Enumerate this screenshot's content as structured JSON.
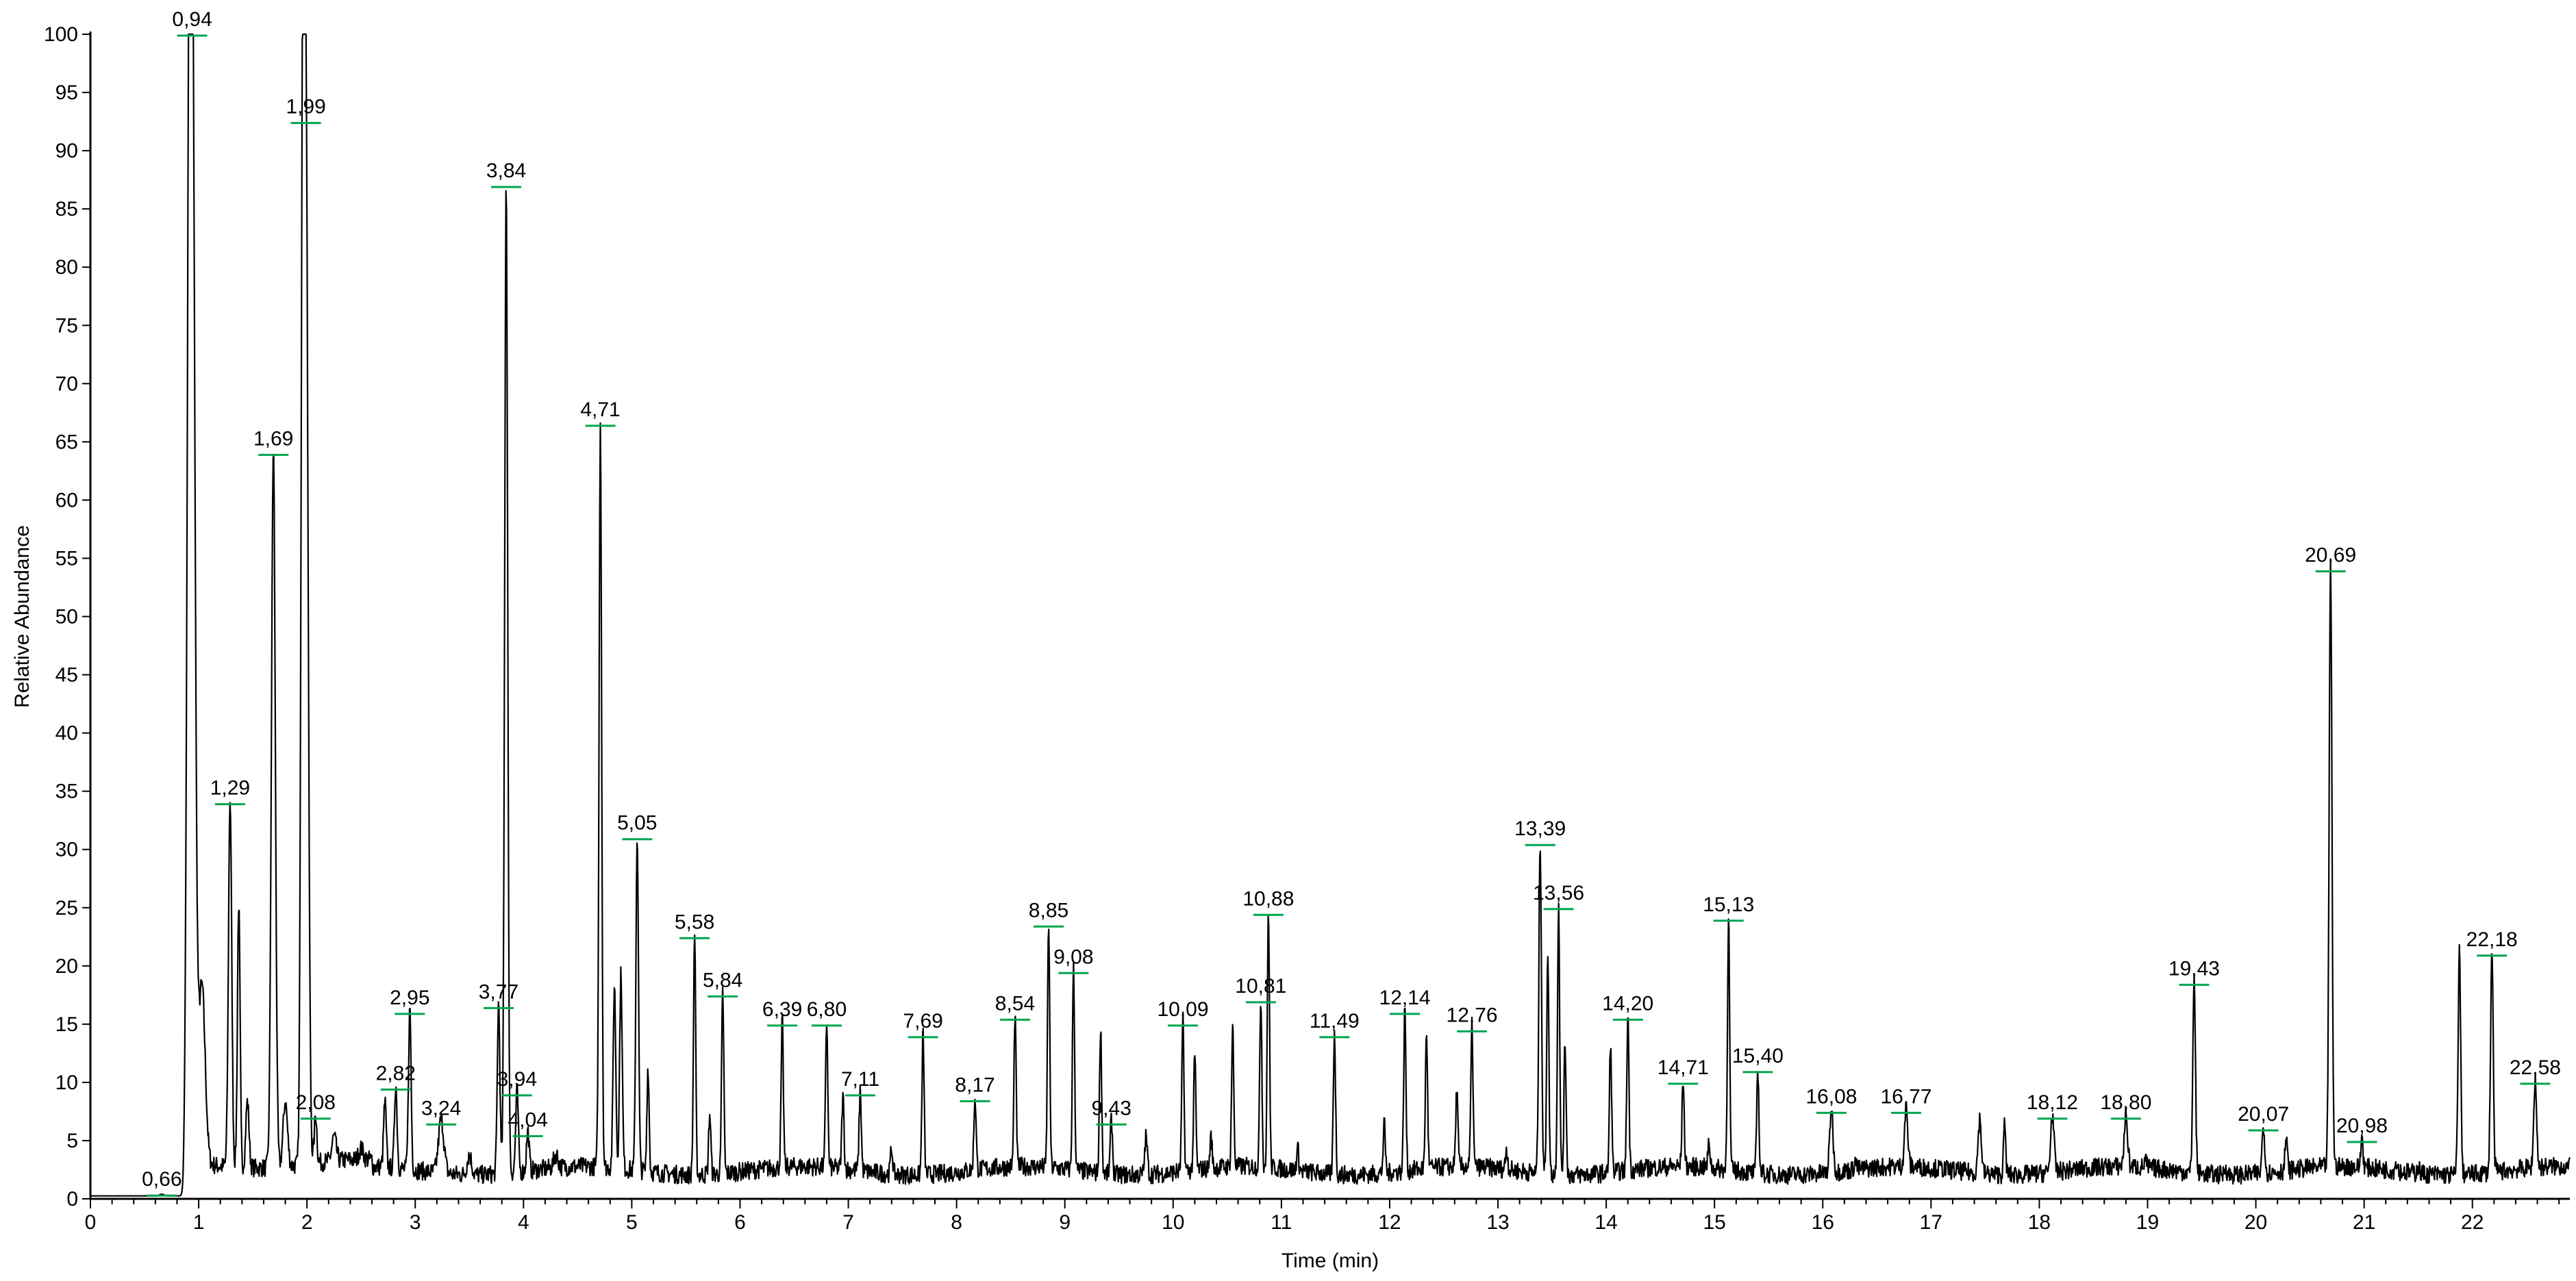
{
  "chart_data": {
    "type": "line",
    "title": "",
    "xlabel": "Time (min)",
    "ylabel": "Relative Abundance",
    "xlim": [
      0,
      22.9
    ],
    "ylim": [
      0,
      100
    ],
    "xticks": [
      "0",
      "1",
      "2",
      "3",
      "4",
      "5",
      "6",
      "7",
      "8",
      "9",
      "10",
      "11",
      "12",
      "13",
      "14",
      "15",
      "16",
      "17",
      "18",
      "19",
      "20",
      "21",
      "22"
    ],
    "yticks": [
      "0",
      "5",
      "10",
      "15",
      "20",
      "25",
      "30",
      "35",
      "40",
      "45",
      "50",
      "55",
      "60",
      "65",
      "70",
      "75",
      "80",
      "85",
      "90",
      "95",
      "100"
    ],
    "grid": false,
    "legend": "none",
    "line_color": "#000000",
    "integration_mark_color": "#00a650",
    "baseline": 1.5,
    "peaks": [
      {
        "label": "0,66",
        "x": 0.66,
        "y": 0.4,
        "w": 0.02,
        "labeled": true
      },
      {
        "label": "0,94",
        "x": 0.94,
        "y": 100,
        "w": 0.025,
        "labeled": true
      },
      {
        "label": "",
        "x": 0.91,
        "y": 63,
        "w": 0.02,
        "labeled": false
      },
      {
        "label": "",
        "x": 1.03,
        "y": 18,
        "w": 0.03,
        "labeled": false
      },
      {
        "label": "1,29",
        "x": 1.29,
        "y": 34,
        "w": 0.015,
        "labeled": true
      },
      {
        "label": "",
        "x": 1.37,
        "y": 25,
        "w": 0.012,
        "labeled": false
      },
      {
        "label": "",
        "x": 1.45,
        "y": 8,
        "w": 0.015,
        "labeled": false
      },
      {
        "label": "1,69",
        "x": 1.69,
        "y": 64,
        "w": 0.018,
        "labeled": true
      },
      {
        "label": "",
        "x": 1.8,
        "y": 8,
        "w": 0.02,
        "labeled": false
      },
      {
        "label": "1,99",
        "x": 1.99,
        "y": 92.5,
        "w": 0.02,
        "labeled": true
      },
      {
        "label": "",
        "x": 1.96,
        "y": 80,
        "w": 0.015,
        "labeled": false
      },
      {
        "label": "2,08",
        "x": 2.08,
        "y": 7,
        "w": 0.012,
        "labeled": true
      },
      {
        "label": "",
        "x": 2.25,
        "y": 5,
        "w": 0.02,
        "labeled": false
      },
      {
        "label": "",
        "x": 2.5,
        "y": 4,
        "w": 0.02,
        "labeled": false
      },
      {
        "label": "",
        "x": 2.72,
        "y": 8,
        "w": 0.012,
        "labeled": false
      },
      {
        "label": "2,82",
        "x": 2.82,
        "y": 9.5,
        "w": 0.012,
        "labeled": true
      },
      {
        "label": "2,95",
        "x": 2.95,
        "y": 16,
        "w": 0.012,
        "labeled": true
      },
      {
        "label": "3,24",
        "x": 3.24,
        "y": 6.5,
        "w": 0.025,
        "labeled": true
      },
      {
        "label": "",
        "x": 3.5,
        "y": 3.5,
        "w": 0.02,
        "labeled": false
      },
      {
        "label": "3,77",
        "x": 3.77,
        "y": 16.5,
        "w": 0.012,
        "labeled": true
      },
      {
        "label": "3,84",
        "x": 3.84,
        "y": 87,
        "w": 0.014,
        "labeled": true
      },
      {
        "label": "3,94",
        "x": 3.94,
        "y": 9,
        "w": 0.012,
        "labeled": true
      },
      {
        "label": "4,04",
        "x": 4.04,
        "y": 5.5,
        "w": 0.012,
        "labeled": true
      },
      {
        "label": "",
        "x": 4.3,
        "y": 3.5,
        "w": 0.02,
        "labeled": false
      },
      {
        "label": "4,71",
        "x": 4.71,
        "y": 66.5,
        "w": 0.012,
        "labeled": true
      },
      {
        "label": "",
        "x": 4.84,
        "y": 18,
        "w": 0.012,
        "labeled": false
      },
      {
        "label": "",
        "x": 4.9,
        "y": 19,
        "w": 0.012,
        "labeled": false
      },
      {
        "label": "5,05",
        "x": 5.05,
        "y": 31,
        "w": 0.012,
        "labeled": true
      },
      {
        "label": "",
        "x": 5.15,
        "y": 11,
        "w": 0.01,
        "labeled": false
      },
      {
        "label": "5,58",
        "x": 5.58,
        "y": 22.5,
        "w": 0.01,
        "labeled": true
      },
      {
        "label": "",
        "x": 5.72,
        "y": 7,
        "w": 0.01,
        "labeled": false
      },
      {
        "label": "5,84",
        "x": 5.84,
        "y": 17.5,
        "w": 0.01,
        "labeled": true
      },
      {
        "label": "6,39",
        "x": 6.39,
        "y": 15,
        "w": 0.01,
        "labeled": true
      },
      {
        "label": "6,80",
        "x": 6.8,
        "y": 15,
        "w": 0.01,
        "labeled": true
      },
      {
        "label": "",
        "x": 6.95,
        "y": 8.5,
        "w": 0.01,
        "labeled": false
      },
      {
        "label": "7,11",
        "x": 7.11,
        "y": 9,
        "w": 0.01,
        "labeled": true
      },
      {
        "label": "",
        "x": 7.4,
        "y": 4,
        "w": 0.01,
        "labeled": false
      },
      {
        "label": "7,69",
        "x": 7.69,
        "y": 14,
        "w": 0.01,
        "labeled": true
      },
      {
        "label": "8,17",
        "x": 8.17,
        "y": 8.5,
        "w": 0.01,
        "labeled": true
      },
      {
        "label": "8,54",
        "x": 8.54,
        "y": 15.5,
        "w": 0.01,
        "labeled": true
      },
      {
        "label": "8,85",
        "x": 8.85,
        "y": 23.5,
        "w": 0.01,
        "labeled": true
      },
      {
        "label": "9,08",
        "x": 9.08,
        "y": 19.5,
        "w": 0.01,
        "labeled": true
      },
      {
        "label": "",
        "x": 9.33,
        "y": 14.5,
        "w": 0.01,
        "labeled": false
      },
      {
        "label": "9,43",
        "x": 9.43,
        "y": 6.5,
        "w": 0.01,
        "labeled": true
      },
      {
        "label": "",
        "x": 9.75,
        "y": 5,
        "w": 0.012,
        "labeled": false
      },
      {
        "label": "10,09",
        "x": 10.09,
        "y": 15,
        "w": 0.01,
        "labeled": true
      },
      {
        "label": "",
        "x": 10.2,
        "y": 12,
        "w": 0.01,
        "labeled": false
      },
      {
        "label": "",
        "x": 10.35,
        "y": 5,
        "w": 0.01,
        "labeled": false
      },
      {
        "label": "",
        "x": 10.55,
        "y": 14.5,
        "w": 0.01,
        "labeled": false
      },
      {
        "label": "10,81",
        "x": 10.81,
        "y": 17,
        "w": 0.01,
        "labeled": true
      },
      {
        "label": "10,88",
        "x": 10.88,
        "y": 24.5,
        "w": 0.01,
        "labeled": true
      },
      {
        "label": "",
        "x": 11.15,
        "y": 4,
        "w": 0.01,
        "labeled": false
      },
      {
        "label": "11,49",
        "x": 11.49,
        "y": 14,
        "w": 0.01,
        "labeled": true
      },
      {
        "label": "",
        "x": 11.95,
        "y": 6,
        "w": 0.01,
        "labeled": false
      },
      {
        "label": "12,14",
        "x": 12.14,
        "y": 16,
        "w": 0.01,
        "labeled": true
      },
      {
        "label": "",
        "x": 12.34,
        "y": 14,
        "w": 0.01,
        "labeled": false
      },
      {
        "label": "",
        "x": 12.62,
        "y": 9,
        "w": 0.01,
        "labeled": false
      },
      {
        "label": "12,76",
        "x": 12.76,
        "y": 14.5,
        "w": 0.01,
        "labeled": true
      },
      {
        "label": "",
        "x": 13.08,
        "y": 4,
        "w": 0.01,
        "labeled": false
      },
      {
        "label": "13,39",
        "x": 13.39,
        "y": 30.5,
        "w": 0.012,
        "labeled": true
      },
      {
        "label": "",
        "x": 13.46,
        "y": 21,
        "w": 0.01,
        "labeled": false
      },
      {
        "label": "13,56",
        "x": 13.56,
        "y": 25,
        "w": 0.01,
        "labeled": true
      },
      {
        "label": "",
        "x": 13.62,
        "y": 13,
        "w": 0.01,
        "labeled": false
      },
      {
        "label": "",
        "x": 14.04,
        "y": 13,
        "w": 0.01,
        "labeled": false
      },
      {
        "label": "14,20",
        "x": 14.2,
        "y": 15.5,
        "w": 0.01,
        "labeled": true
      },
      {
        "label": "14,71",
        "x": 14.71,
        "y": 10,
        "w": 0.01,
        "labeled": true
      },
      {
        "label": "",
        "x": 14.95,
        "y": 4.5,
        "w": 0.01,
        "labeled": false
      },
      {
        "label": "15,13",
        "x": 15.13,
        "y": 24,
        "w": 0.01,
        "labeled": true
      },
      {
        "label": "15,40",
        "x": 15.4,
        "y": 11,
        "w": 0.01,
        "labeled": true
      },
      {
        "label": "16,08",
        "x": 16.08,
        "y": 7.5,
        "w": 0.015,
        "labeled": true
      },
      {
        "label": "",
        "x": 16.3,
        "y": 3,
        "w": 0.01,
        "labeled": false
      },
      {
        "label": "16,77",
        "x": 16.77,
        "y": 7.5,
        "w": 0.015,
        "labeled": true
      },
      {
        "label": "",
        "x": 17.45,
        "y": 6.5,
        "w": 0.015,
        "labeled": false
      },
      {
        "label": "",
        "x": 17.68,
        "y": 6,
        "w": 0.01,
        "labeled": false
      },
      {
        "label": "18,12",
        "x": 18.12,
        "y": 7,
        "w": 0.015,
        "labeled": true
      },
      {
        "label": "18,80",
        "x": 18.8,
        "y": 7,
        "w": 0.015,
        "labeled": true
      },
      {
        "label": "",
        "x": 18.98,
        "y": 3,
        "w": 0.01,
        "labeled": false
      },
      {
        "label": "19,43",
        "x": 19.43,
        "y": 18.5,
        "w": 0.012,
        "labeled": true
      },
      {
        "label": "",
        "x": 19.72,
        "y": 2.5,
        "w": 0.01,
        "labeled": false
      },
      {
        "label": "20,07",
        "x": 20.07,
        "y": 6,
        "w": 0.012,
        "labeled": true
      },
      {
        "label": "",
        "x": 20.28,
        "y": 5,
        "w": 0.01,
        "labeled": false
      },
      {
        "label": "20,69",
        "x": 20.69,
        "y": 54,
        "w": 0.013,
        "labeled": true
      },
      {
        "label": "20,98",
        "x": 20.98,
        "y": 5,
        "w": 0.01,
        "labeled": true
      },
      {
        "label": "",
        "x": 21.3,
        "y": 3,
        "w": 0.01,
        "labeled": false
      },
      {
        "label": "",
        "x": 21.5,
        "y": 2.5,
        "w": 0.01,
        "labeled": false
      },
      {
        "label": "",
        "x": 21.88,
        "y": 21,
        "w": 0.012,
        "labeled": false
      },
      {
        "label": "22,18",
        "x": 22.18,
        "y": 21,
        "w": 0.012,
        "labeled": true
      },
      {
        "label": "22,58",
        "x": 22.58,
        "y": 10,
        "w": 0.013,
        "labeled": true
      }
    ]
  }
}
